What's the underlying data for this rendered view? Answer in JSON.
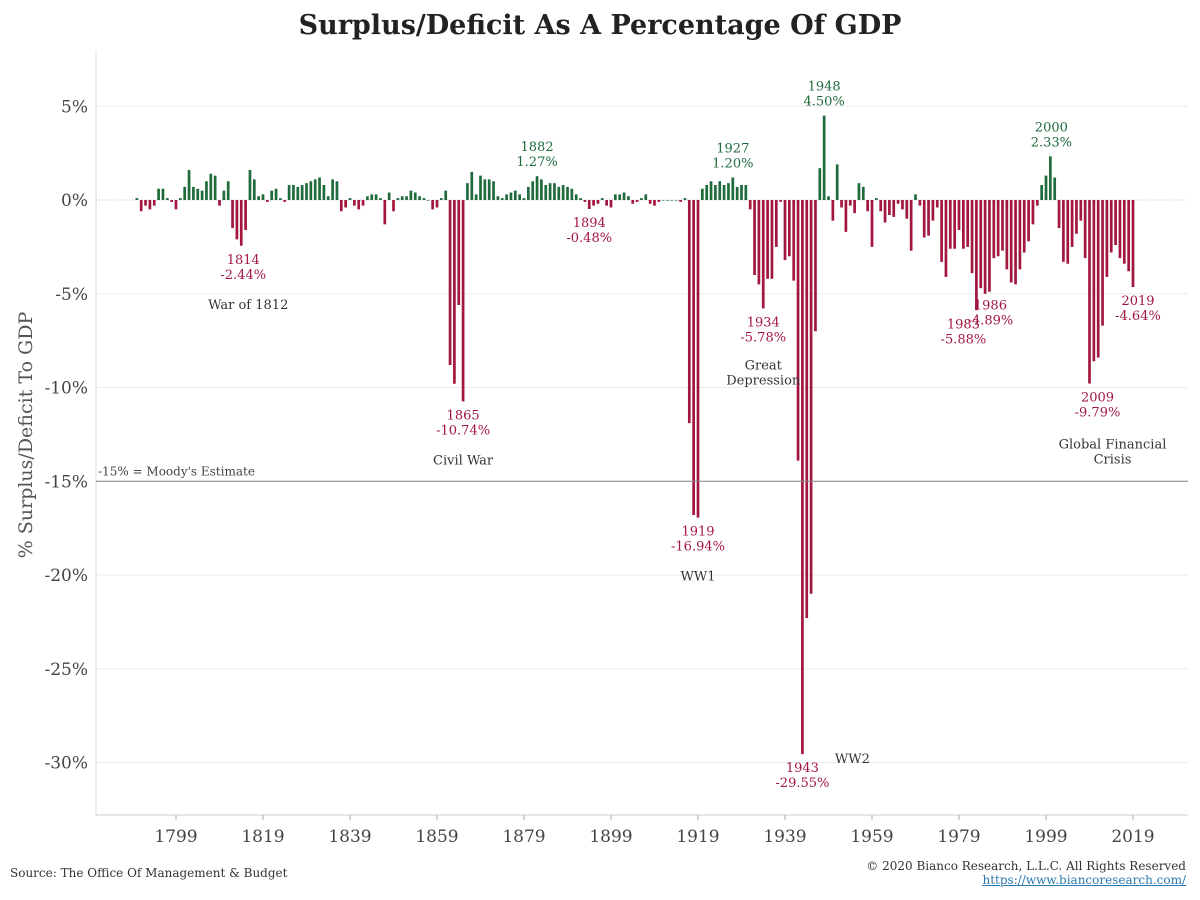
{
  "title": "Surplus/Deficit As A Percentage Of GDP",
  "footer": {
    "source": "Source: The Office Of Management & Budget",
    "copyright": "© 2020 Bianco Research, L.L.C. All Rights Reserved",
    "website": "https://www.biancoresearch.com/"
  },
  "colors": {
    "surplus": "#1f6b3c",
    "deficit": "#a3173f",
    "reference_line": "#999999",
    "grid": "#ececec"
  },
  "chart_data": {
    "type": "bar",
    "title": "Surplus/Deficit As A Percentage Of GDP",
    "ylabel": "% Surplus/Deficit To GDP",
    "xlabel": "",
    "ylim": [
      -32.5,
      7.5
    ],
    "xlim": [
      1780,
      2030
    ],
    "y_ticks": [
      {
        "value": 5,
        "label": "5%"
      },
      {
        "value": 0,
        "label": "0%"
      },
      {
        "value": -5,
        "label": "-5%"
      },
      {
        "value": -10,
        "label": "-10%"
      },
      {
        "value": -15,
        "label": "-15%"
      },
      {
        "value": -20,
        "label": "-20%"
      },
      {
        "value": -25,
        "label": "-25%"
      },
      {
        "value": -30,
        "label": "-30%"
      }
    ],
    "x_ticks": [
      1799,
      1819,
      1839,
      1859,
      1879,
      1899,
      1919,
      1939,
      1959,
      1979,
      1999,
      2019
    ],
    "grid": "horizontal",
    "reference_line": {
      "value": -15,
      "label": "-15% = Moody's Estimate"
    },
    "series": [
      {
        "x": [
          1790,
          1791,
          1792,
          1793,
          1794,
          1795,
          1796,
          1797,
          1798,
          1799,
          1800,
          1801,
          1802,
          1803,
          1804,
          1805,
          1806,
          1807,
          1808,
          1809,
          1810,
          1811,
          1812,
          1813,
          1814,
          1815,
          1816,
          1817,
          1818,
          1819,
          1820,
          1821,
          1822,
          1823,
          1824,
          1825,
          1826,
          1827,
          1828,
          1829,
          1830,
          1831,
          1832,
          1833,
          1834,
          1835,
          1836,
          1837,
          1838,
          1839,
          1840,
          1841,
          1842,
          1843,
          1844,
          1845,
          1846,
          1847,
          1848,
          1849,
          1850,
          1851,
          1852,
          1853,
          1854,
          1855,
          1856,
          1857,
          1858,
          1859,
          1860,
          1861,
          1862,
          1863,
          1864,
          1865,
          1866,
          1867,
          1868,
          1869,
          1870,
          1871,
          1872,
          1873,
          1874,
          1875,
          1876,
          1877,
          1878,
          1879,
          1880,
          1881,
          1882,
          1883,
          1884,
          1885,
          1886,
          1887,
          1888,
          1889,
          1890,
          1891,
          1892,
          1893,
          1894,
          1895,
          1896,
          1897,
          1898,
          1899,
          1900,
          1901,
          1902,
          1903,
          1904,
          1905,
          1906,
          1907,
          1908,
          1909,
          1910,
          1911,
          1912,
          1913,
          1914,
          1915,
          1916,
          1917,
          1918,
          1919,
          1920,
          1921,
          1922,
          1923,
          1924,
          1925,
          1926,
          1927,
          1928,
          1929,
          1930,
          1931,
          1932,
          1933,
          1934,
          1935,
          1936,
          1937,
          1938,
          1939,
          1940,
          1941,
          1942,
          1943,
          1944,
          1945,
          1946,
          1947,
          1948,
          1949,
          1950,
          1951,
          1952,
          1953,
          1954,
          1955,
          1956,
          1957,
          1958,
          1959,
          1960,
          1961,
          1962,
          1963,
          1964,
          1965,
          1966,
          1967,
          1968,
          1969,
          1970,
          1971,
          1972,
          1973,
          1974,
          1975,
          1976,
          1977,
          1978,
          1979,
          1980,
          1981,
          1982,
          1983,
          1984,
          1985,
          1986,
          1987,
          1988,
          1989,
          1990,
          1991,
          1992,
          1993,
          1994,
          1995,
          1996,
          1997,
          1998,
          1999,
          2000,
          2001,
          2002,
          2003,
          2004,
          2005,
          2006,
          2007,
          2008,
          2009,
          2010,
          2011,
          2012,
          2013,
          2014,
          2015,
          2016,
          2017,
          2018,
          2019
        ],
        "values": [
          0.1,
          -0.6,
          -0.3,
          -0.5,
          -0.3,
          0.6,
          0.6,
          0.1,
          -0.1,
          -0.5,
          0.1,
          0.7,
          1.6,
          0.7,
          0.6,
          0.5,
          1.0,
          1.4,
          1.3,
          -0.3,
          0.5,
          1.0,
          -1.5,
          -2.1,
          -2.44,
          -1.6,
          1.6,
          1.1,
          0.2,
          0.3,
          -0.1,
          0.5,
          0.6,
          0.1,
          -0.1,
          0.8,
          0.8,
          0.7,
          0.8,
          0.9,
          1.0,
          1.1,
          1.2,
          0.8,
          0.2,
          1.1,
          1.0,
          -0.6,
          -0.4,
          0.1,
          -0.3,
          -0.5,
          -0.3,
          0.2,
          0.3,
          0.3,
          0.1,
          -1.3,
          0.4,
          -0.6,
          0.1,
          0.2,
          0.2,
          0.5,
          0.4,
          0.2,
          0.1,
          0.0,
          -0.5,
          -0.4,
          0.1,
          0.5,
          -8.8,
          -9.8,
          -5.6,
          -10.74,
          0.9,
          1.5,
          0.3,
          1.3,
          1.1,
          1.1,
          1.0,
          0.2,
          0.1,
          0.3,
          0.4,
          0.5,
          0.3,
          0.1,
          0.7,
          1.0,
          1.27,
          1.1,
          0.8,
          0.9,
          0.9,
          0.7,
          0.8,
          0.7,
          0.6,
          0.3,
          0.1,
          -0.1,
          -0.48,
          -0.3,
          -0.2,
          0.1,
          -0.3,
          -0.4,
          0.3,
          0.3,
          0.4,
          0.2,
          -0.2,
          -0.1,
          0.1,
          0.3,
          -0.2,
          -0.3,
          -0.1,
          0.0,
          0.0,
          0.0,
          0.0,
          -0.1,
          0.1,
          -11.9,
          -16.8,
          -16.94,
          0.6,
          0.8,
          1.0,
          0.8,
          1.0,
          0.8,
          0.9,
          1.2,
          0.7,
          0.8,
          0.8,
          -0.5,
          -4.0,
          -4.5,
          -5.78,
          -4.2,
          -4.2,
          -2.5,
          -0.1,
          -3.2,
          -3.0,
          -4.3,
          -13.9,
          -29.55,
          -22.3,
          -21.0,
          -7.0,
          1.7,
          4.5,
          0.2,
          -1.1,
          1.9,
          -0.4,
          -1.7,
          -0.3,
          -0.7,
          0.9,
          0.7,
          -0.6,
          -2.5,
          0.1,
          -0.6,
          -1.2,
          -0.8,
          -0.9,
          -0.2,
          -0.5,
          -1.0,
          -2.7,
          0.3,
          -0.3,
          -2.0,
          -1.9,
          -1.1,
          -0.4,
          -3.3,
          -4.1,
          -2.6,
          -2.6,
          -1.6,
          -2.6,
          -2.5,
          -3.9,
          -5.88,
          -4.7,
          -5.0,
          -4.89,
          -3.1,
          -3.0,
          -2.7,
          -3.7,
          -4.4,
          -4.5,
          -3.7,
          -2.8,
          -2.2,
          -1.3,
          -0.3,
          0.8,
          1.3,
          2.33,
          1.2,
          -1.5,
          -3.3,
          -3.4,
          -2.5,
          -1.8,
          -1.1,
          -3.1,
          -9.79,
          -8.6,
          -8.4,
          -6.7,
          -4.1,
          -2.8,
          -2.4,
          -3.1,
          -3.4,
          -3.8,
          -4.64
        ]
      }
    ],
    "annotations": [
      {
        "year": 1814,
        "value": -2.44,
        "year_label": "1814",
        "value_label": "-2.44%",
        "event": "War of 1812"
      },
      {
        "year": 1865,
        "value": -10.74,
        "year_label": "1865",
        "value_label": "-10.74%",
        "event": "Civil War"
      },
      {
        "year": 1882,
        "value": 1.27,
        "year_label": "1882",
        "value_label": "1.27%"
      },
      {
        "year": 1894,
        "value": -0.48,
        "year_label": "1894",
        "value_label": "-0.48%"
      },
      {
        "year": 1919,
        "value": -16.94,
        "year_label": "1919",
        "value_label": "-16.94%",
        "event": "WW1"
      },
      {
        "year": 1927,
        "value": 1.2,
        "year_label": "1927",
        "value_label": "1.20%"
      },
      {
        "year": 1934,
        "value": -5.78,
        "year_label": "1934",
        "value_label": "-5.78%",
        "event": "Great Depression"
      },
      {
        "year": 1943,
        "value": -29.55,
        "year_label": "1943",
        "value_label": "-29.55%",
        "event": "WW2"
      },
      {
        "year": 1948,
        "value": 4.5,
        "year_label": "1948",
        "value_label": "4.50%"
      },
      {
        "year": 1983,
        "value": -5.88,
        "year_label": "1983",
        "value_label": "-5.88%"
      },
      {
        "year": 1986,
        "value": -4.89,
        "year_label": "1986",
        "value_label": "-4.89%"
      },
      {
        "year": 2000,
        "value": 2.33,
        "year_label": "2000",
        "value_label": "2.33%"
      },
      {
        "year": 2009,
        "value": -9.79,
        "year_label": "2009",
        "value_label": "-9.79%",
        "event": "Global Financial Crisis"
      },
      {
        "year": 2019,
        "value": -4.64,
        "year_label": "2019",
        "value_label": "-4.64%"
      }
    ]
  }
}
